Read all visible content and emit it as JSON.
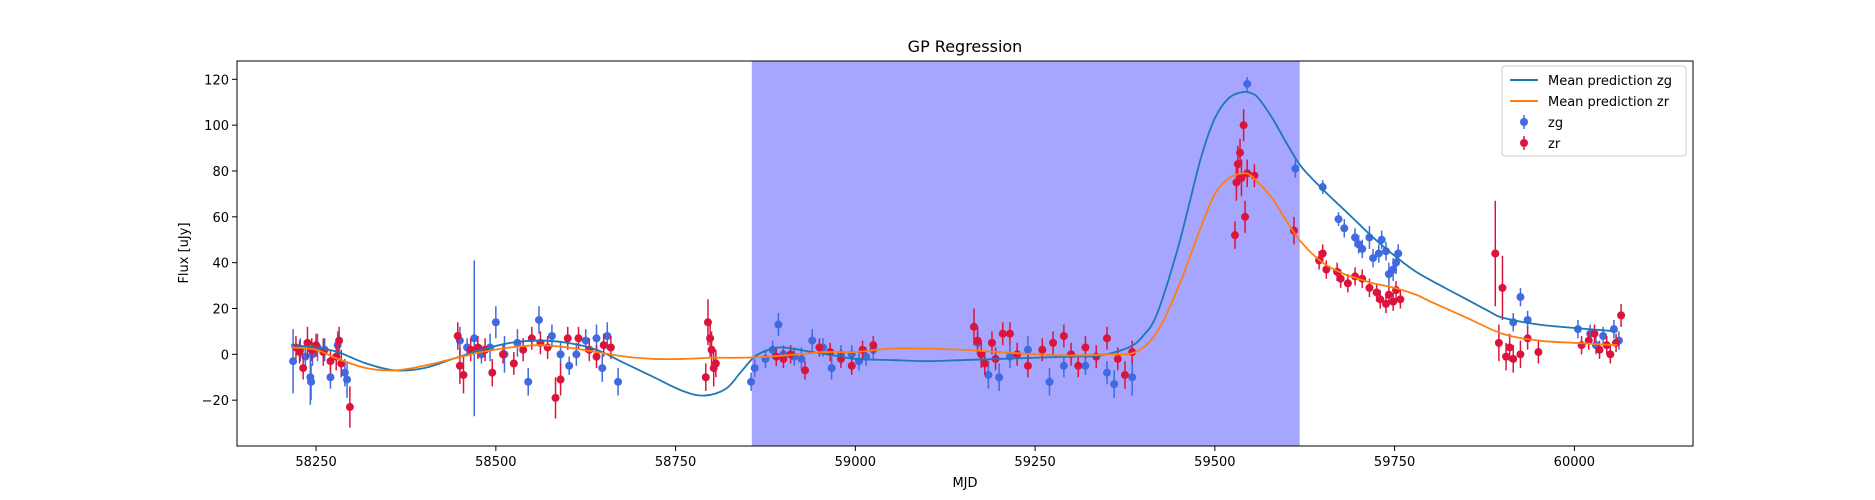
{
  "chart_data": {
    "type": "scatter",
    "title": "GP Regression",
    "xlabel": "MJD",
    "ylabel": "Flux [uJy]",
    "xlim": [
      58140,
      60165
    ],
    "ylim": [
      -40,
      128
    ],
    "xticks": [
      58250,
      58500,
      58750,
      59000,
      59250,
      59500,
      59750,
      60000
    ],
    "yticks": [
      -20,
      0,
      20,
      40,
      60,
      80,
      100,
      120
    ],
    "grid": false,
    "legend_position": "top-right",
    "shaded_region": {
      "x0": 58856,
      "x1": 59618,
      "color": "#a6a6ff"
    },
    "lines": [
      {
        "name": "Mean prediction zg",
        "color": "#1f77b4",
        "x": [
          58215,
          58250,
          58280,
          58320,
          58360,
          58400,
          58440,
          58480,
          58520,
          58560,
          58600,
          58640,
          58680,
          58720,
          58760,
          58790,
          58820,
          58840,
          58860,
          58880,
          58900,
          58940,
          58980,
          59000,
          59050,
          59100,
          59150,
          59200,
          59250,
          59300,
          59340,
          59380,
          59400,
          59420,
          59450,
          59480,
          59500,
          59520,
          59540,
          59550,
          59560,
          59580,
          59600,
          59620,
          59650,
          59680,
          59700,
          59720,
          59750,
          59780,
          59820,
          59850,
          59880,
          59900,
          59950,
          60000,
          60060
        ],
        "y": [
          4,
          3,
          1,
          -4,
          -7,
          -6,
          -2,
          2,
          5,
          6,
          5,
          2,
          -4,
          -10,
          -16,
          -18,
          -15,
          -8,
          -1,
          2,
          3,
          1,
          -1,
          -2,
          -2.5,
          -3,
          -2.5,
          -2,
          -1.5,
          -1,
          -0.5,
          3,
          8,
          18,
          48,
          85,
          103,
          112,
          114.5,
          114,
          112,
          103,
          92,
          82,
          72,
          63,
          57,
          51,
          43,
          36,
          29,
          24,
          19,
          16,
          13,
          11.5,
          10
        ]
      },
      {
        "name": "Mean prediction zr",
        "color": "#ff7f0e",
        "x": [
          58215,
          58250,
          58280,
          58320,
          58360,
          58400,
          58440,
          58480,
          58520,
          58560,
          58600,
          58640,
          58680,
          58720,
          58760,
          58800,
          58840,
          58880,
          58920,
          58960,
          59000,
          59050,
          59100,
          59150,
          59200,
          59250,
          59300,
          59350,
          59390,
          59420,
          59450,
          59480,
          59500,
          59520,
          59540,
          59550,
          59560,
          59580,
          59600,
          59620,
          59650,
          59680,
          59700,
          59720,
          59750,
          59780,
          59800,
          59850,
          59900,
          59950,
          60000,
          60060
        ],
        "y": [
          3,
          2,
          -2,
          -6,
          -7,
          -5,
          -2,
          1,
          3,
          4,
          3,
          1,
          -1,
          -2,
          -2,
          -1.5,
          -1.5,
          -1,
          0,
          1,
          1,
          2.5,
          2.5,
          2,
          1,
          0,
          -0.5,
          0,
          1,
          10,
          30,
          55,
          70,
          77,
          79,
          78,
          75,
          68,
          58,
          49,
          40,
          35,
          33,
          31,
          29,
          26,
          23,
          16,
          9,
          6,
          5,
          4
        ]
      }
    ],
    "series": [
      {
        "name": "zg",
        "color": "#4169e1",
        "points": [
          [
            58218,
            -3,
            14
          ],
          [
            58228,
            2,
            5
          ],
          [
            58235,
            -1,
            6
          ],
          [
            58242,
            -10,
            12
          ],
          [
            58243,
            -12,
            8
          ],
          [
            58245,
            0,
            5
          ],
          [
            58252,
            3,
            6
          ],
          [
            58262,
            2,
            5
          ],
          [
            58270,
            -10,
            5
          ],
          [
            58280,
            4,
            6
          ],
          [
            58290,
            -8,
            6
          ],
          [
            58293,
            -11,
            8
          ],
          [
            58450,
            6,
            6
          ],
          [
            58460,
            3,
            4
          ],
          [
            58470,
            7,
            34
          ],
          [
            58480,
            0,
            4
          ],
          [
            58492,
            3,
            6
          ],
          [
            58500,
            14,
            7
          ],
          [
            58512,
            0,
            8
          ],
          [
            58530,
            5,
            6
          ],
          [
            58545,
            -12,
            6
          ],
          [
            58560,
            15,
            6
          ],
          [
            58578,
            8,
            5
          ],
          [
            58590,
            0,
            5
          ],
          [
            58602,
            -5,
            4
          ],
          [
            58612,
            0,
            5
          ],
          [
            58625,
            6,
            5
          ],
          [
            58640,
            7,
            6
          ],
          [
            58648,
            -6,
            6
          ],
          [
            58655,
            8,
            6
          ],
          [
            58670,
            -12,
            6
          ],
          [
            58855,
            -12,
            4
          ],
          [
            58860,
            -6,
            4
          ],
          [
            58875,
            -2,
            4
          ],
          [
            58885,
            2,
            4
          ],
          [
            58893,
            13,
            5
          ],
          [
            58900,
            0,
            4
          ],
          [
            58915,
            -1,
            4
          ],
          [
            58925,
            -2,
            5
          ],
          [
            58940,
            6,
            5
          ],
          [
            58955,
            3,
            4
          ],
          [
            58967,
            -6,
            5
          ],
          [
            58980,
            0,
            4
          ],
          [
            58995,
            0,
            4
          ],
          [
            59005,
            -3,
            4
          ],
          [
            59015,
            -1,
            4
          ],
          [
            59025,
            2,
            4
          ],
          [
            59170,
            5,
            5
          ],
          [
            59185,
            -9,
            6
          ],
          [
            59200,
            -10,
            6
          ],
          [
            59215,
            -1,
            5
          ],
          [
            59240,
            2,
            6
          ],
          [
            59270,
            -12,
            6
          ],
          [
            59290,
            -5,
            5
          ],
          [
            59320,
            -5,
            4
          ],
          [
            59350,
            -8,
            5
          ],
          [
            59360,
            -13,
            6
          ],
          [
            59385,
            -10,
            8
          ],
          [
            59545,
            118,
            3
          ],
          [
            59612,
            81,
            4
          ],
          [
            59650,
            73,
            3
          ],
          [
            59672,
            59,
            3
          ],
          [
            59680,
            55,
            4
          ],
          [
            59695,
            51,
            4
          ],
          [
            59700,
            48,
            4
          ],
          [
            59705,
            46,
            4
          ],
          [
            59715,
            51,
            5
          ],
          [
            59720,
            42,
            4
          ],
          [
            59728,
            44,
            4
          ],
          [
            59732,
            50,
            4
          ],
          [
            59738,
            45,
            4
          ],
          [
            59742,
            35,
            5
          ],
          [
            59748,
            37,
            5
          ],
          [
            59752,
            40,
            5
          ],
          [
            59755,
            44,
            4
          ],
          [
            59915,
            14,
            4
          ],
          [
            59925,
            25,
            4
          ],
          [
            59935,
            15,
            4
          ],
          [
            60005,
            11,
            4
          ],
          [
            60022,
            9,
            4
          ],
          [
            60030,
            4,
            4
          ],
          [
            60040,
            8,
            4
          ],
          [
            60055,
            11,
            4
          ],
          [
            60062,
            6,
            4
          ]
        ]
      },
      {
        "name": "zr",
        "color": "#dc143c",
        "points": [
          [
            58222,
            3,
            5
          ],
          [
            58227,
            1,
            5
          ],
          [
            58232,
            -6,
            5
          ],
          [
            58238,
            5,
            7
          ],
          [
            58244,
            2,
            5
          ],
          [
            58250,
            4,
            5
          ],
          [
            58260,
            1,
            6
          ],
          [
            58270,
            -3,
            5
          ],
          [
            58278,
            -1,
            6
          ],
          [
            58282,
            6,
            6
          ],
          [
            58285,
            -4,
            6
          ],
          [
            58297,
            -23,
            9
          ],
          [
            58447,
            8,
            6
          ],
          [
            58450,
            -5,
            8
          ],
          [
            58455,
            -9,
            8
          ],
          [
            58465,
            2,
            5
          ],
          [
            58475,
            3,
            5
          ],
          [
            58485,
            2,
            5
          ],
          [
            58495,
            -8,
            6
          ],
          [
            58510,
            0,
            4
          ],
          [
            58525,
            -4,
            5
          ],
          [
            58538,
            2,
            5
          ],
          [
            58550,
            7,
            5
          ],
          [
            58562,
            5,
            5
          ],
          [
            58572,
            3,
            5
          ],
          [
            58583,
            -19,
            9
          ],
          [
            58590,
            -11,
            7
          ],
          [
            58600,
            7,
            5
          ],
          [
            58615,
            7,
            5
          ],
          [
            58630,
            2,
            5
          ],
          [
            58640,
            -1,
            5
          ],
          [
            58650,
            4,
            5
          ],
          [
            58660,
            3,
            5
          ],
          [
            58792,
            -10,
            6
          ],
          [
            58795,
            14,
            10
          ],
          [
            58798,
            7,
            8
          ],
          [
            58800,
            2,
            8
          ],
          [
            58803,
            -6,
            8
          ],
          [
            58806,
            -4,
            6
          ],
          [
            58890,
            -1,
            4
          ],
          [
            58900,
            -2,
            4
          ],
          [
            58910,
            0,
            4
          ],
          [
            58930,
            -7,
            4
          ],
          [
            58950,
            3,
            4
          ],
          [
            58965,
            1,
            4
          ],
          [
            58980,
            -2,
            4
          ],
          [
            58995,
            -5,
            4
          ],
          [
            59010,
            2,
            4
          ],
          [
            59025,
            4,
            4
          ],
          [
            59165,
            12,
            8
          ],
          [
            59170,
            6,
            6
          ],
          [
            59175,
            0,
            6
          ],
          [
            59180,
            -4,
            5
          ],
          [
            59190,
            5,
            5
          ],
          [
            59195,
            -2,
            5
          ],
          [
            59205,
            9,
            5
          ],
          [
            59215,
            9,
            5
          ],
          [
            59225,
            0,
            5
          ],
          [
            59240,
            -5,
            5
          ],
          [
            59260,
            2,
            5
          ],
          [
            59275,
            5,
            5
          ],
          [
            59290,
            8,
            5
          ],
          [
            59300,
            0,
            5
          ],
          [
            59310,
            -5,
            5
          ],
          [
            59320,
            3,
            5
          ],
          [
            59335,
            -1,
            5
          ],
          [
            59350,
            7,
            5
          ],
          [
            59365,
            -2,
            5
          ],
          [
            59375,
            -9,
            6
          ],
          [
            59385,
            1,
            5
          ],
          [
            59528,
            52,
            6
          ],
          [
            59530,
            75,
            8
          ],
          [
            59532,
            83,
            8
          ],
          [
            59535,
            88,
            6
          ],
          [
            59537,
            77,
            8
          ],
          [
            59540,
            100,
            7
          ],
          [
            59542,
            60,
            7
          ],
          [
            59545,
            79,
            6
          ],
          [
            59555,
            78,
            5
          ],
          [
            59610,
            54,
            6
          ],
          [
            59645,
            41,
            4
          ],
          [
            59650,
            44,
            4
          ],
          [
            59655,
            37,
            4
          ],
          [
            59670,
            36,
            4
          ],
          [
            59675,
            33,
            4
          ],
          [
            59685,
            31,
            4
          ],
          [
            59695,
            34,
            4
          ],
          [
            59705,
            33,
            4
          ],
          [
            59715,
            29,
            4
          ],
          [
            59725,
            27,
            4
          ],
          [
            59730,
            24,
            4
          ],
          [
            59738,
            22,
            4
          ],
          [
            59742,
            26,
            4
          ],
          [
            59748,
            23,
            4
          ],
          [
            59752,
            28,
            4
          ],
          [
            59758,
            24,
            4
          ],
          [
            59890,
            44,
            23
          ],
          [
            59895,
            5,
            8
          ],
          [
            59900,
            29,
            14
          ],
          [
            59905,
            -1,
            6
          ],
          [
            59910,
            3,
            6
          ],
          [
            59915,
            -2,
            6
          ],
          [
            59925,
            0,
            6
          ],
          [
            59935,
            7,
            5
          ],
          [
            59950,
            1,
            5
          ],
          [
            60010,
            4,
            4
          ],
          [
            60020,
            6,
            4
          ],
          [
            60028,
            9,
            4
          ],
          [
            60035,
            2,
            4
          ],
          [
            60045,
            4,
            4
          ],
          [
            60050,
            0,
            4
          ],
          [
            60058,
            5,
            4
          ],
          [
            60065,
            17,
            5
          ]
        ]
      }
    ]
  }
}
